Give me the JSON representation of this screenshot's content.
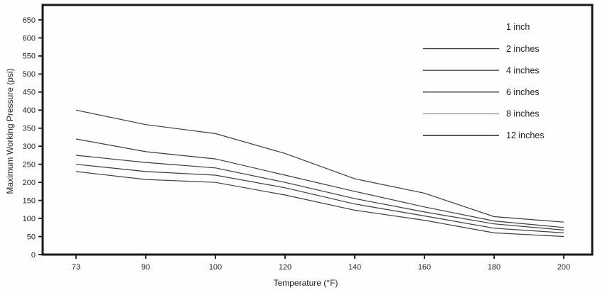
{
  "chart_data": {
    "type": "line",
    "title": "",
    "xlabel": "Temperature (°F)",
    "ylabel": "Maximum Working Pressure (psi)",
    "x_tick_labels": [
      "73",
      "90",
      "100",
      "120",
      "140",
      "160",
      "180",
      "200"
    ],
    "y_tick_labels": [
      "0",
      "50",
      "100",
      "150",
      "200",
      "250",
      "300",
      "350",
      "400",
      "450",
      "500",
      "550",
      "600",
      "650"
    ],
    "ylim": [
      0,
      650
    ],
    "grid": false,
    "legend_position": "inside-top-right",
    "axis_color": "#1a1a1a",
    "line_color": "#3c3c3c",
    "text_color": "#231f20",
    "series": [
      {
        "name": "2 inches",
        "values": [
          400,
          360,
          335,
          280,
          210,
          170,
          105,
          90
        ]
      },
      {
        "name": "4 inches",
        "values": [
          320,
          285,
          265,
          220,
          175,
          132,
          93,
          75
        ]
      },
      {
        "name": "6 inches",
        "values": [
          275,
          255,
          240,
          200,
          155,
          118,
          85,
          68
        ]
      },
      {
        "name": "8 inches",
        "values": [
          250,
          230,
          220,
          185,
          140,
          107,
          73,
          60
        ]
      },
      {
        "name": "12 inches",
        "values": [
          230,
          208,
          200,
          165,
          123,
          95,
          60,
          50
        ]
      }
    ],
    "legend": [
      {
        "label": "1 inch",
        "has_sample_line": false,
        "sample_color": null
      },
      {
        "label": "2 inches",
        "has_sample_line": true,
        "sample_color": "#3c3c3c"
      },
      {
        "label": "4 inches",
        "has_sample_line": true,
        "sample_color": "#4a4a4a"
      },
      {
        "label": "6 inches",
        "has_sample_line": true,
        "sample_color": "#3c3c3c"
      },
      {
        "label": "8 inches",
        "has_sample_line": true,
        "sample_color": "#9b9b9b"
      },
      {
        "label": "12 inches",
        "has_sample_line": true,
        "sample_color": "#222222"
      }
    ]
  }
}
